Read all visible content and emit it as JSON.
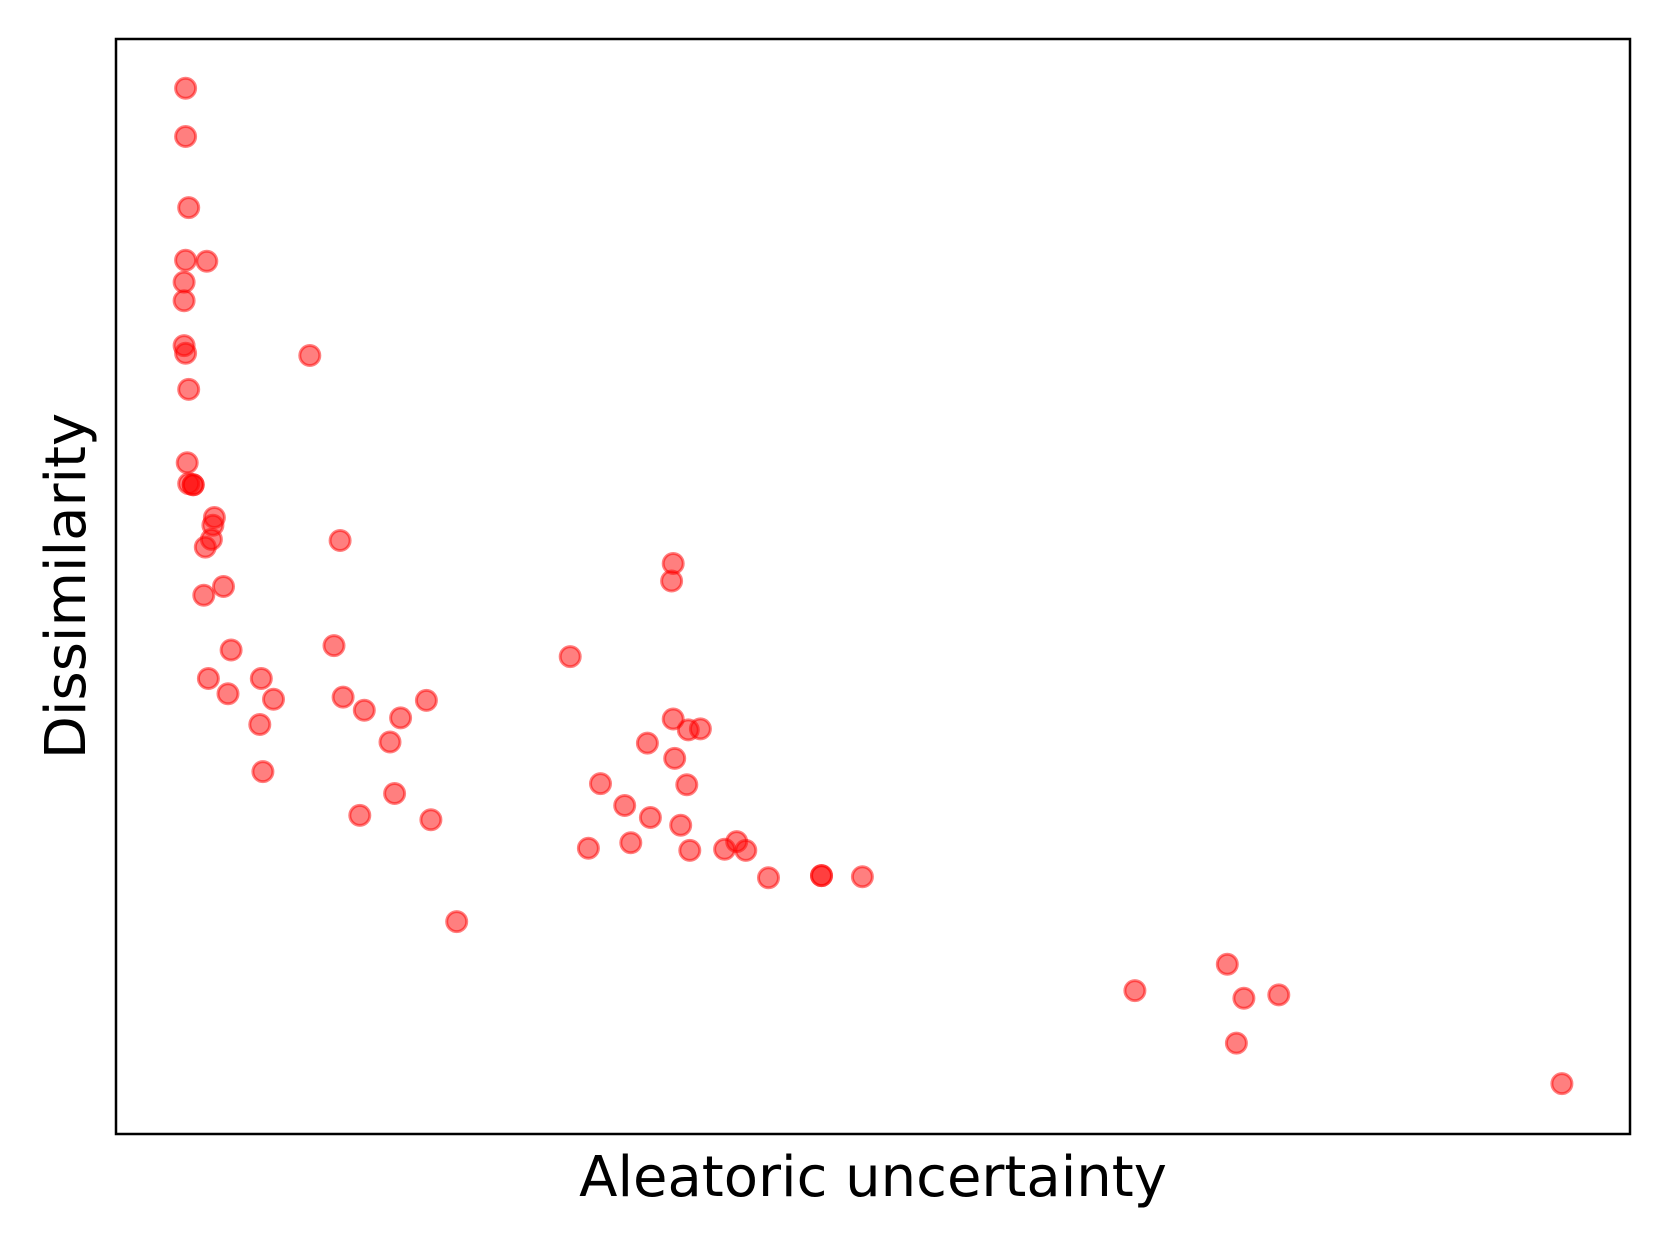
{
  "chart_data": {
    "type": "scatter",
    "title": "",
    "xlabel": "Aleatoric uncertainty",
    "ylabel": "Dissimilarity",
    "xlim": [
      0,
      1
    ],
    "ylim": [
      0,
      1
    ],
    "xticks": "none",
    "yticks": "none",
    "grid": false,
    "legend": "none",
    "colors": {
      "marker": "#ff0000",
      "axes": "#000000"
    },
    "series": [
      {
        "x": [
          0.046,
          0.046,
          0.048,
          0.046,
          0.06,
          0.045,
          0.045,
          0.045,
          0.046,
          0.048,
          0.047,
          0.048,
          0.051,
          0.051,
          0.128,
          0.064,
          0.065,
          0.063,
          0.059,
          0.071,
          0.058,
          0.076,
          0.061,
          0.074,
          0.096,
          0.104,
          0.095,
          0.097,
          0.148,
          0.144,
          0.15,
          0.164,
          0.188,
          0.181,
          0.205,
          0.184,
          0.208,
          0.161,
          0.225,
          0.368,
          0.367,
          0.3,
          0.378,
          0.368,
          0.351,
          0.32,
          0.336,
          0.34,
          0.312,
          0.41,
          0.353,
          0.373,
          0.386,
          0.369,
          0.377,
          0.416,
          0.402,
          0.379,
          0.431,
          0.466,
          0.493,
          0.466,
          0.734,
          0.673,
          0.74,
          0.768,
          0.745,
          0.955
        ],
        "y": [
          0.955,
          0.911,
          0.846,
          0.798,
          0.797,
          0.778,
          0.761,
          0.72,
          0.713,
          0.68,
          0.613,
          0.594,
          0.593,
          0.593,
          0.711,
          0.556,
          0.563,
          0.543,
          0.536,
          0.5,
          0.492,
          0.442,
          0.416,
          0.402,
          0.416,
          0.397,
          0.374,
          0.331,
          0.542,
          0.446,
          0.399,
          0.387,
          0.38,
          0.358,
          0.396,
          0.311,
          0.287,
          0.291,
          0.194,
          0.521,
          0.505,
          0.436,
          0.369,
          0.379,
          0.357,
          0.32,
          0.3,
          0.266,
          0.261,
          0.267,
          0.289,
          0.282,
          0.37,
          0.343,
          0.319,
          0.259,
          0.26,
          0.259,
          0.234,
          0.236,
          0.235,
          0.236,
          0.155,
          0.131,
          0.083,
          0.127,
          0.124,
          0.046
        ]
      }
    ]
  }
}
